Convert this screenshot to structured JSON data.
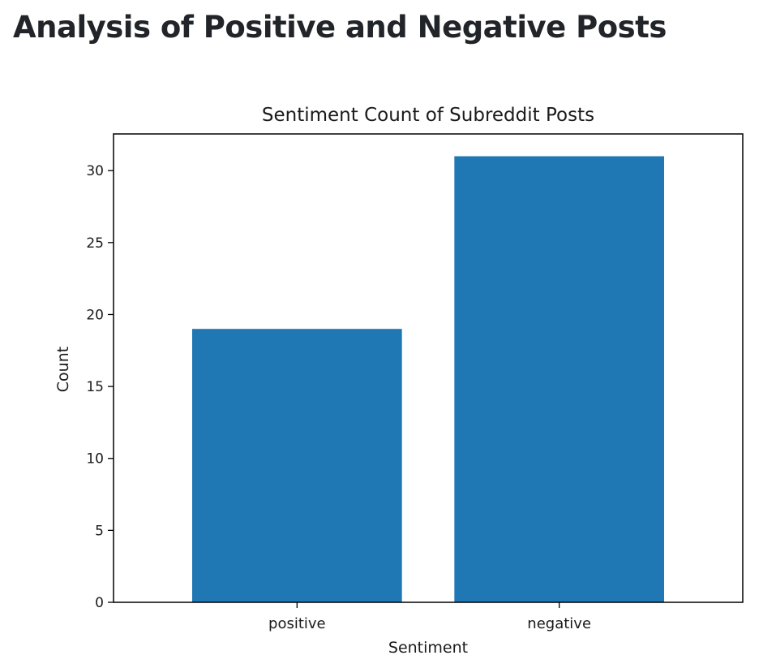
{
  "page": {
    "heading": "Analysis of Positive and Negative Posts"
  },
  "chart_data": {
    "type": "bar",
    "title": "Sentiment Count of Subreddit Posts",
    "xlabel": "Sentiment",
    "ylabel": "Count",
    "categories": [
      "positive",
      "negative"
    ],
    "values": [
      19,
      31
    ],
    "ylim": [
      0,
      32.55
    ],
    "yticks": [
      0,
      5,
      10,
      15,
      20,
      25,
      30
    ],
    "bar_color": "#1f77b4",
    "grid": false,
    "legend": "none"
  }
}
